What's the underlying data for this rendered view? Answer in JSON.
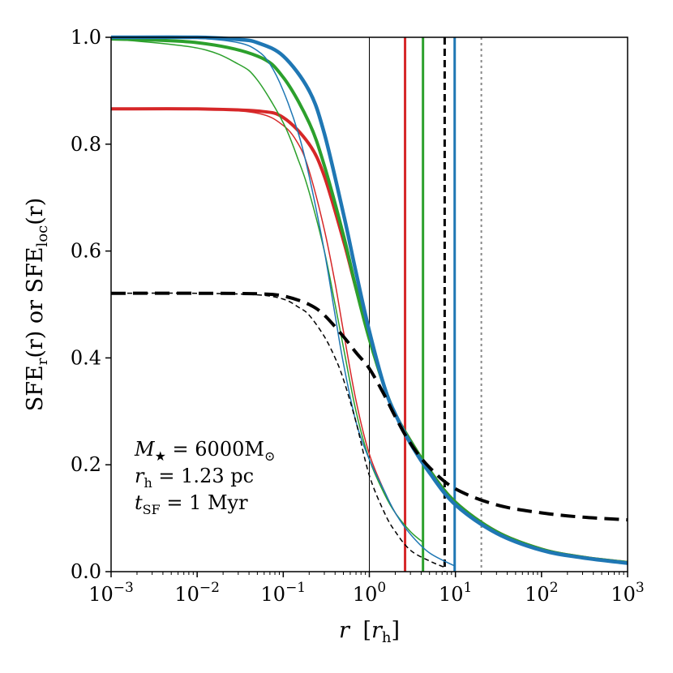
{
  "chart_data": {
    "type": "line",
    "title": "",
    "xlabel": "r [r_h]",
    "ylabel": "SFE_r(r) or SFE_loc(r)",
    "xscale": "log",
    "xlim": [
      0.001,
      1000
    ],
    "ylim": [
      0.0,
      1.0
    ],
    "grid": false,
    "x_ticks": [
      {
        "base": "10",
        "exp": "−3",
        "value": 0.001
      },
      {
        "base": "10",
        "exp": "−2",
        "value": 0.01
      },
      {
        "base": "10",
        "exp": "−1",
        "value": 0.1
      },
      {
        "base": "10",
        "exp": "0",
        "value": 1
      },
      {
        "base": "10",
        "exp": "1",
        "value": 10
      },
      {
        "base": "10",
        "exp": "2",
        "value": 100
      },
      {
        "base": "10",
        "exp": "3",
        "value": 1000
      }
    ],
    "y_ticks": [
      "0.0",
      "0.2",
      "0.4",
      "0.6",
      "0.8",
      "1.0"
    ],
    "x_axis_label": {
      "var": "r",
      "bracket_open": "[",
      "sub_var": "r",
      "sub": "h",
      "bracket_close": "]"
    },
    "y_axis_label": {
      "part1": "SFE",
      "sub1": "r",
      "part2": "(r) or SFE",
      "sub2": "loc",
      "part3": "(r)"
    },
    "annotation_lines": [
      {
        "name": "mass",
        "lhs": "M",
        "lhs_sub": "★",
        "rhs": " = 6000M",
        "rhs_sub": "⊙"
      },
      {
        "name": "rh",
        "lhs": "r",
        "lhs_sub": "h",
        "rhs": "  = 1.23 pc",
        "rhs_sub": ""
      },
      {
        "name": "tsf",
        "lhs": "t",
        "lhs_sub": "SF",
        "rhs": " = 1 Myr",
        "rhs_sub": ""
      }
    ],
    "series": [
      {
        "name": "red-sfe-r",
        "color": "#d62728",
        "width": 4,
        "dash": "",
        "x": [
          0.001,
          0.01,
          0.05,
          0.1,
          0.2,
          0.3,
          0.5,
          0.7,
          1,
          1.5,
          2,
          3,
          5,
          10,
          30,
          100,
          300,
          1000
        ],
        "y": [
          0.866,
          0.866,
          0.862,
          0.85,
          0.8,
          0.74,
          0.62,
          0.53,
          0.44,
          0.345,
          0.295,
          0.245,
          0.19,
          0.13,
          0.075,
          0.042,
          0.027,
          0.017
        ]
      },
      {
        "name": "red-sfe-loc",
        "color": "#d62728",
        "width": 1.5,
        "dash": "",
        "x": [
          0.001,
          0.01,
          0.05,
          0.1,
          0.15,
          0.2,
          0.3,
          0.4,
          0.5,
          0.7,
          1,
          1.5,
          2,
          2.6
        ],
        "y": [
          0.866,
          0.866,
          0.858,
          0.835,
          0.8,
          0.75,
          0.64,
          0.54,
          0.45,
          0.32,
          0.22,
          0.15,
          0.11,
          0.085
        ]
      },
      {
        "name": "green-sfe-r",
        "color": "#2ca02c",
        "width": 4,
        "dash": "",
        "x": [
          0.001,
          0.01,
          0.05,
          0.1,
          0.2,
          0.3,
          0.5,
          0.7,
          1,
          1.5,
          2,
          3,
          5,
          10,
          30,
          100,
          300,
          1000
        ],
        "y": [
          0.997,
          0.99,
          0.965,
          0.925,
          0.84,
          0.76,
          0.63,
          0.53,
          0.435,
          0.345,
          0.295,
          0.245,
          0.19,
          0.13,
          0.075,
          0.042,
          0.027,
          0.017
        ]
      },
      {
        "name": "green-sfe-loc",
        "color": "#2ca02c",
        "width": 1.5,
        "dash": "",
        "x": [
          0.001,
          0.01,
          0.03,
          0.05,
          0.1,
          0.15,
          0.2,
          0.3,
          0.4,
          0.5,
          0.7,
          1,
          1.5,
          2,
          3,
          4.2
        ],
        "y": [
          0.997,
          0.98,
          0.95,
          0.92,
          0.84,
          0.77,
          0.71,
          0.6,
          0.5,
          0.42,
          0.3,
          0.21,
          0.145,
          0.11,
          0.075,
          0.055
        ]
      },
      {
        "name": "blue-sfe-r",
        "color": "#1f77b4",
        "width": 4.5,
        "dash": "",
        "x": [
          0.001,
          0.01,
          0.03,
          0.05,
          0.1,
          0.2,
          0.3,
          0.5,
          0.7,
          1,
          1.5,
          2,
          3,
          5,
          10,
          30,
          100,
          300,
          1000
        ],
        "y": [
          1.0,
          1.0,
          0.996,
          0.99,
          0.965,
          0.9,
          0.82,
          0.67,
          0.56,
          0.45,
          0.345,
          0.295,
          0.24,
          0.185,
          0.125,
          0.072,
          0.04,
          0.026,
          0.016
        ]
      },
      {
        "name": "blue-sfe-loc",
        "color": "#1f77b4",
        "width": 1.5,
        "dash": "",
        "x": [
          0.001,
          0.01,
          0.03,
          0.05,
          0.07,
          0.1,
          0.15,
          0.2,
          0.3,
          0.4,
          0.5,
          0.7,
          1,
          1.5,
          2,
          3,
          5,
          10
        ],
        "y": [
          1.0,
          0.998,
          0.99,
          0.975,
          0.95,
          0.9,
          0.82,
          0.74,
          0.6,
          0.48,
          0.39,
          0.28,
          0.21,
          0.15,
          0.11,
          0.07,
          0.035,
          0.01
        ]
      },
      {
        "name": "black-dashed-sfe-r",
        "color": "#000000",
        "width": 4,
        "dash": "18,9",
        "x": [
          0.001,
          0.01,
          0.05,
          0.1,
          0.2,
          0.3,
          0.5,
          0.7,
          1,
          1.5,
          2,
          3,
          5,
          10,
          30,
          100,
          300,
          1000
        ],
        "y": [
          0.521,
          0.521,
          0.52,
          0.516,
          0.5,
          0.48,
          0.44,
          0.41,
          0.38,
          0.33,
          0.29,
          0.24,
          0.195,
          0.155,
          0.125,
          0.11,
          0.102,
          0.097
        ]
      },
      {
        "name": "black-dashed-sfe-loc",
        "color": "#000000",
        "width": 1.5,
        "dash": "6,4",
        "x": [
          0.001,
          0.01,
          0.05,
          0.1,
          0.15,
          0.2,
          0.3,
          0.4,
          0.5,
          0.7,
          1,
          1.5,
          2,
          3,
          5,
          7.5
        ],
        "y": [
          0.521,
          0.521,
          0.518,
          0.51,
          0.495,
          0.48,
          0.44,
          0.4,
          0.36,
          0.28,
          0.18,
          0.11,
          0.075,
          0.04,
          0.02,
          0.008
        ]
      }
    ],
    "vlines": [
      {
        "name": "vline-rh",
        "x": 1.0,
        "color": "#000000",
        "width": 1,
        "dash": ""
      },
      {
        "name": "vline-red",
        "x": 2.6,
        "color": "#d62728",
        "width": 3,
        "dash": ""
      },
      {
        "name": "vline-green",
        "x": 4.2,
        "color": "#2ca02c",
        "width": 3,
        "dash": ""
      },
      {
        "name": "vline-black",
        "x": 7.5,
        "color": "#000000",
        "width": 3,
        "dash": "9,5"
      },
      {
        "name": "vline-blue",
        "x": 9.8,
        "color": "#1f77b4",
        "width": 3,
        "dash": ""
      },
      {
        "name": "vline-grey",
        "x": 20,
        "color": "#888888",
        "width": 2,
        "dash": "3,4"
      }
    ]
  }
}
